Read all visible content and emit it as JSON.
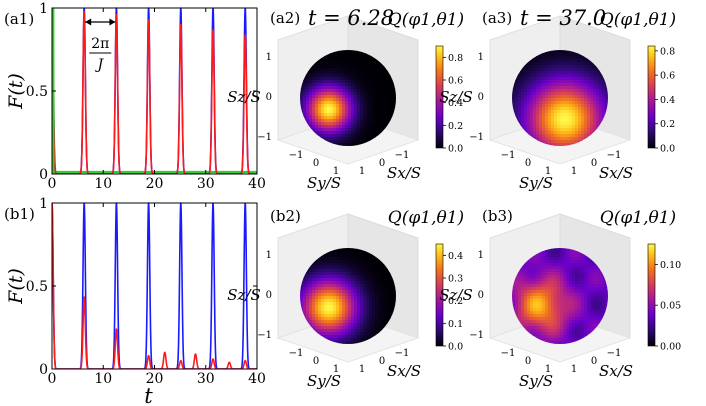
{
  "chart_data": [
    {
      "id": "a1",
      "type": "line",
      "panel_label": "(a1)",
      "ylabel": "F(t)",
      "xlabel": "",
      "xlim": [
        0,
        40
      ],
      "ylim": [
        0,
        1.0
      ],
      "xticks": [
        "0",
        "10",
        "20",
        "30",
        "40"
      ],
      "xtick_values": [
        0,
        10,
        20,
        30,
        40
      ],
      "yticks": [
        "0",
        "0.5",
        "1"
      ],
      "ytick_values": [
        0,
        0.5,
        1
      ],
      "annotation": {
        "numerator": "2π",
        "denominator": "J",
        "from": 6.28,
        "to": 12.57
      },
      "series": [
        {
          "name": "blue",
          "color": "#1a1aff",
          "peak_times": [
            0,
            6.28,
            12.57,
            18.85,
            25.13,
            31.42,
            37.7
          ],
          "peak_values": [
            1,
            1,
            1,
            1,
            1,
            1,
            1
          ]
        },
        {
          "name": "red",
          "color": "#ff1a1a",
          "peak_times": [
            0,
            6.28,
            12.57,
            18.85,
            25.13,
            31.42,
            37.7
          ],
          "peak_values": [
            1,
            0.98,
            0.96,
            0.93,
            0.9,
            0.87,
            0.84
          ]
        },
        {
          "name": "green",
          "color": "#33cc33",
          "peak_times": [
            0
          ],
          "peak_values": [
            1
          ]
        }
      ]
    },
    {
      "id": "b1",
      "type": "line",
      "panel_label": "(b1)",
      "ylabel": "F(t)",
      "xlabel": "t",
      "xlim": [
        0,
        40
      ],
      "ylim": [
        0,
        1.0
      ],
      "xticks": [
        "0",
        "10",
        "20",
        "30",
        "40"
      ],
      "xtick_values": [
        0,
        10,
        20,
        30,
        40
      ],
      "yticks": [
        "0",
        "0.5",
        "1"
      ],
      "ytick_values": [
        0,
        0.5,
        1
      ],
      "series": [
        {
          "name": "blue",
          "color": "#1a1aff",
          "peak_times": [
            0,
            6.28,
            12.57,
            18.85,
            25.13,
            31.42,
            37.7
          ],
          "peak_values": [
            1,
            1,
            1,
            1,
            1,
            1,
            1
          ]
        },
        {
          "name": "red",
          "color": "#ff1a1a",
          "peak_times": [
            0,
            6.28,
            12.57,
            18.85,
            22.0,
            25.13,
            28.0,
            31.42,
            34.6,
            37.7
          ],
          "peak_values": [
            1,
            0.43,
            0.24,
            0.08,
            0.1,
            0.05,
            0.09,
            0.06,
            0.04,
            0.05
          ]
        }
      ]
    },
    {
      "id": "a2",
      "type": "heatmap",
      "panel_label": "(a2)",
      "time_label": "t = 6.28",
      "title": "Q(φ1,θ1)",
      "colorbar_ticks": [
        "0.0",
        "0.2",
        "0.4",
        "0.6",
        "0.8"
      ],
      "colorbar_values": [
        0,
        0.2,
        0.4,
        0.6,
        0.8
      ],
      "vmax": 0.9,
      "spot": {
        "phi_frac": 0.3,
        "theta_frac": 0.62,
        "peak": 0.9,
        "spread": 0.16
      },
      "axes": {
        "z": "Sz/S",
        "y": "Sy/S",
        "x": "Sx/S",
        "z_ticks": [
          "1",
          "0",
          "−1"
        ],
        "y_ticks": [
          "−1",
          "0",
          "1"
        ],
        "x_ticks": [
          "1",
          "0",
          "−1"
        ]
      }
    },
    {
      "id": "a3",
      "type": "heatmap",
      "panel_label": "(a3)",
      "time_label": "t = 37.0",
      "title": "Q(φ1,θ1)",
      "colorbar_ticks": [
        "0.0",
        "0.2",
        "0.4",
        "0.6",
        "0.8"
      ],
      "colorbar_values": [
        0,
        0.2,
        0.4,
        0.6,
        0.8
      ],
      "vmax": 0.84,
      "spot": {
        "phi_frac": 0.55,
        "theta_frac": 0.72,
        "peak": 0.84,
        "spread": 0.28
      },
      "axes": {
        "z": "Sz/S",
        "y": "Sy/S",
        "x": "Sx/S",
        "z_ticks": [
          "1",
          "0",
          "−1"
        ],
        "y_ticks": [
          "−1",
          "0",
          "1"
        ],
        "x_ticks": [
          "1",
          "0",
          "−1"
        ]
      }
    },
    {
      "id": "b2",
      "type": "heatmap",
      "panel_label": "(b2)",
      "time_label": "",
      "title": "Q(φ1,θ1)",
      "colorbar_ticks": [
        "0.0",
        "0.1",
        "0.2",
        "0.3",
        "0.4"
      ],
      "colorbar_values": [
        0,
        0.1,
        0.2,
        0.3,
        0.4
      ],
      "vmax": 0.45,
      "spot": {
        "phi_frac": 0.3,
        "theta_frac": 0.62,
        "peak": 0.45,
        "spread": 0.2
      },
      "axes": {
        "z": "Sz/S",
        "y": "Sy/S",
        "x": "Sx/S",
        "z_ticks": [
          "1",
          "0",
          "−1"
        ],
        "y_ticks": [
          "−1",
          "0",
          "1"
        ],
        "x_ticks": [
          "1",
          "0",
          "−1"
        ]
      }
    },
    {
      "id": "b3",
      "type": "heatmap",
      "panel_label": "(b3)",
      "time_label": "",
      "title": "Q(φ1,θ1)",
      "colorbar_ticks": [
        "0.00",
        "0.05",
        "0.10"
      ],
      "colorbar_values": [
        0,
        0.05,
        0.1
      ],
      "vmax": 0.125,
      "spot": {
        "phi_frac": 0.3,
        "theta_frac": 0.6,
        "peak": 0.07,
        "spread": 0.2,
        "background": 0.035
      },
      "axes": {
        "z": "Sz/S",
        "y": "Sy/S",
        "x": "Sx/S",
        "z_ticks": [
          "1",
          "0",
          "−1"
        ],
        "y_ticks": [
          "−1",
          "0",
          "1"
        ],
        "x_ticks": [
          "1",
          "0",
          "−1"
        ]
      }
    }
  ]
}
